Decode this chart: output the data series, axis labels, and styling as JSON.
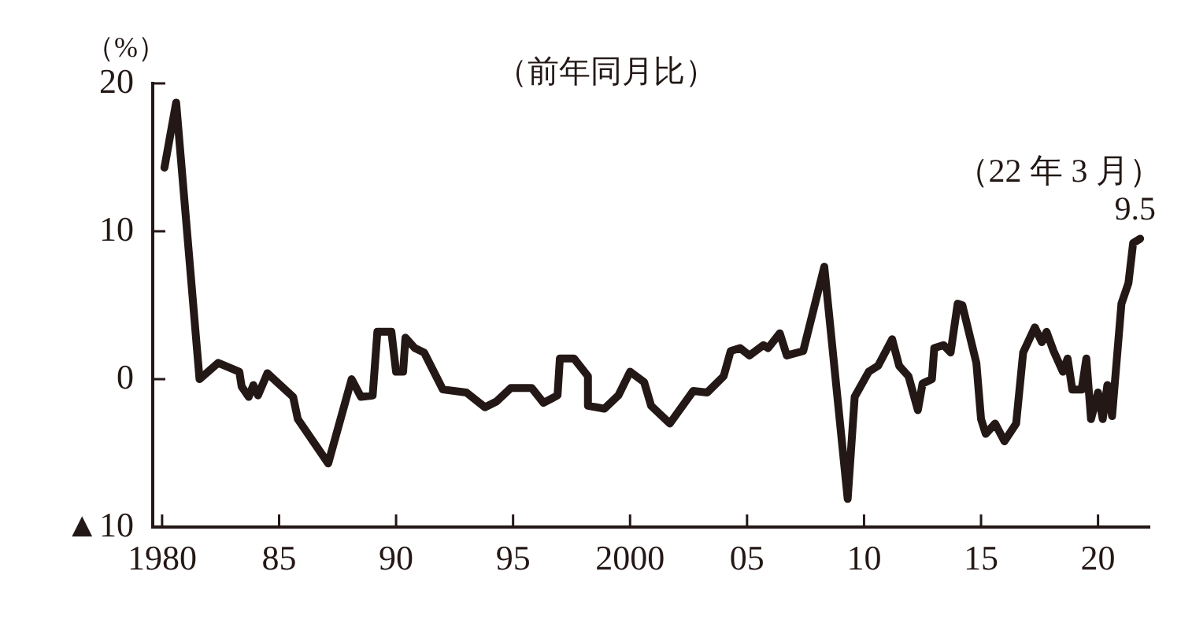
{
  "chart_data": {
    "type": "line",
    "title": "（前年同月比）",
    "ylabel": "（%）",
    "annotations": [
      "（22 年 3 月）"
    ],
    "xlim": [
      1979.6,
      2022.2
    ],
    "xticks": [
      1980,
      {
        "value": 1985,
        "label": "85"
      },
      {
        "value": 1990,
        "label": "90"
      },
      {
        "value": 1995,
        "label": "95"
      },
      2000,
      {
        "value": 2005,
        "label": "05"
      },
      {
        "value": 2010,
        "label": "10"
      },
      {
        "value": 2015,
        "label": "15"
      },
      {
        "value": 2020,
        "label": "20"
      }
    ],
    "ylim": [
      -10,
      20
    ],
    "yticks": [
      {
        "value": -10,
        "label": "▲10"
      },
      0,
      10,
      20
    ],
    "grid": false,
    "legend": false,
    "marker": "none",
    "line_style": "solid",
    "series": [
      {
        "color": "#231815",
        "x": [
          1980.1,
          1980.6,
          1981.6,
          1982.4,
          1983.3,
          1983.4,
          1983.7,
          1983.9,
          1984.1,
          1984.5,
          1985.6,
          1985.8,
          1987.1,
          1988.1,
          1988.5,
          1989.0,
          1989.2,
          1989.8,
          1990.0,
          1990.3,
          1990.4,
          1990.8,
          1991.2,
          1992.0,
          1993.0,
          1993.8,
          1994.3,
          1994.9,
          1995.8,
          1996.3,
          1996.9,
          1997.0,
          1997.6,
          1998.2,
          1998.2,
          1998.9,
          1999.5,
          2000.0,
          2000.6,
          2000.9,
          2001.7,
          2002.7,
          2003.3,
          2004.0,
          2004.3,
          2004.7,
          2005.1,
          2005.7,
          2005.9,
          2006.4,
          2006.7,
          2007.4,
          2008.3,
          2009.3,
          2009.6,
          2010.2,
          2010.6,
          2011.2,
          2011.5,
          2011.9,
          2012.3,
          2012.5,
          2012.9,
          2013.0,
          2013.4,
          2013.7,
          2014.0,
          2014.2,
          2014.8,
          2015.0,
          2015.2,
          2015.6,
          2016.0,
          2016.5,
          2016.8,
          2017.3,
          2017.6,
          2017.8,
          2018.1,
          2018.5,
          2018.7,
          2018.9,
          2019.3,
          2019.5,
          2019.7,
          2020.0,
          2020.2,
          2020.4,
          2020.6,
          2021.0,
          2021.3,
          2021.5,
          2021.8
        ],
        "values": [
          14.3,
          18.7,
          0,
          1.1,
          0.5,
          -0.5,
          -1.2,
          -0.4,
          -1.1,
          0.4,
          -1.2,
          -2.7,
          -5.7,
          0,
          -1.2,
          -1.1,
          3.2,
          3.2,
          0.5,
          0.5,
          2.8,
          2.1,
          1.8,
          -0.7,
          -0.9,
          -1.9,
          -1.5,
          -0.6,
          -0.6,
          -1.6,
          -1.1,
          1.4,
          1.4,
          0.2,
          -1.8,
          -2.0,
          -1.1,
          0.5,
          -0.2,
          -1.8,
          -3.0,
          -0.8,
          -0.9,
          0.2,
          1.9,
          2.1,
          1.6,
          2.3,
          2.1,
          3.1,
          1.6,
          1.9,
          7.6,
          -8.1,
          -1.2,
          0.5,
          0.9,
          2.7,
          0.9,
          0.2,
          -2.1,
          -0.3,
          0,
          2.1,
          2.3,
          1.8,
          5.1,
          5.0,
          1.1,
          -2.7,
          -3.7,
          -3.0,
          -4.2,
          -3.0,
          1.8,
          3.5,
          2.5,
          3.2,
          1.9,
          0.5,
          1.4,
          -0.7,
          -0.7,
          1.4,
          -2.7,
          -0.9,
          -2.7,
          -0.4,
          -2.5,
          5.1,
          6.5,
          9.2,
          9.5
        ],
        "value_labels": [
          null,
          null,
          null,
          null,
          null,
          null,
          null,
          null,
          null,
          null,
          null,
          null,
          null,
          null,
          null,
          null,
          null,
          null,
          null,
          null,
          null,
          null,
          null,
          null,
          null,
          null,
          null,
          null,
          null,
          null,
          null,
          null,
          null,
          null,
          null,
          null,
          null,
          null,
          null,
          null,
          null,
          null,
          null,
          null,
          null,
          null,
          null,
          null,
          null,
          null,
          null,
          null,
          null,
          null,
          null,
          null,
          null,
          null,
          null,
          null,
          null,
          null,
          null,
          null,
          null,
          null,
          null,
          null,
          null,
          null,
          null,
          null,
          null,
          null,
          null,
          null,
          null,
          null,
          null,
          null,
          null,
          null,
          null,
          null,
          null,
          null,
          null,
          null,
          null,
          null,
          null,
          null,
          "9.5"
        ]
      }
    ]
  }
}
